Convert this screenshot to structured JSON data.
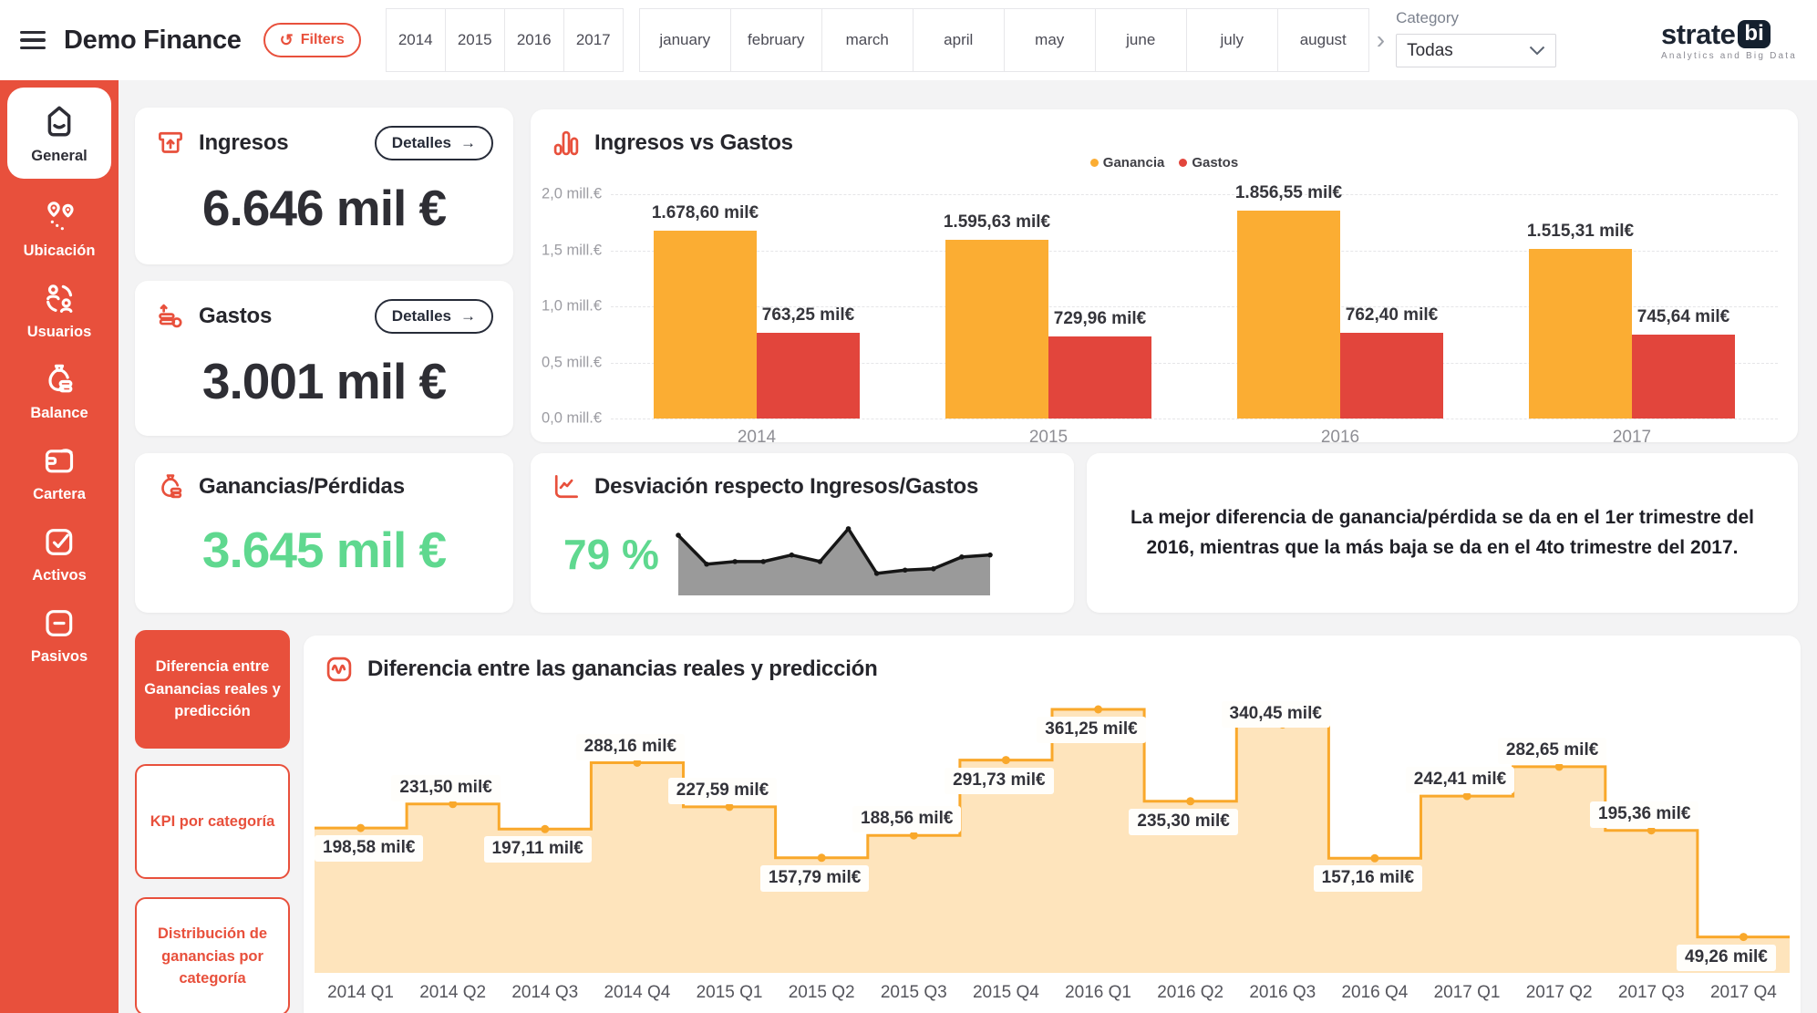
{
  "topbar": {
    "title": "Demo Finance",
    "filters_label": "Filters",
    "years": [
      "2014",
      "2015",
      "2016",
      "2017"
    ],
    "months": [
      "january",
      "february",
      "march",
      "april",
      "may",
      "june",
      "july",
      "august"
    ],
    "more_months_chevron": "›",
    "category": {
      "label": "Category",
      "value": "Todas"
    },
    "logo": {
      "brand": "strate",
      "brand_badge": "bi",
      "tagline": "Analytics and Big Data"
    }
  },
  "sidebar": {
    "items": [
      {
        "label": "General",
        "icon": "home-icon",
        "active": true
      },
      {
        "label": "Ubicación",
        "icon": "location-pins-icon",
        "active": false
      },
      {
        "label": "Usuarios",
        "icon": "users-sync-icon",
        "active": false
      },
      {
        "label": "Balance",
        "icon": "money-bag-icon",
        "active": false
      },
      {
        "label": "Cartera",
        "icon": "wallet-icon",
        "active": false
      },
      {
        "label": "Activos",
        "icon": "check-square-icon",
        "active": false
      },
      {
        "label": "Pasivos",
        "icon": "minus-square-icon",
        "active": false
      }
    ]
  },
  "kpis": {
    "ingresos": {
      "title": "Ingresos",
      "value": "6.646 mil €",
      "details_label": "Detalles",
      "icon": "cash-in-icon"
    },
    "gastos": {
      "title": "Gastos",
      "value": "3.001 mil €",
      "details_label": "Detalles",
      "icon": "coins-out-icon"
    },
    "ganancias": {
      "title": "Ganancias/Pérdidas",
      "value": "3.645 mil €",
      "icon": "money-bag-icon"
    },
    "desviacion": {
      "title": "Desviación respecto Ingresos/Gastos",
      "value": "79 %",
      "icon": "trend-axis-icon"
    }
  },
  "insight": {
    "text": "La mejor diferencia de ganancia/pérdida se da en el 1er trimestre del 2016, mientras que la más baja se da en el 4to trimestre del 2017."
  },
  "bottom_nav": {
    "buttons": [
      {
        "label": "Diferencia entre Ganancias reales y predicción",
        "active": true
      },
      {
        "label": "KPI por categoría",
        "active": false
      },
      {
        "label": "Distribución de ganancias por categoría",
        "active": false
      }
    ]
  },
  "colors": {
    "accent_red": "#E8503C",
    "bar_red": "#E2453C",
    "bar_orange": "#FBAD33",
    "step_line": "#F9A82B",
    "step_fill": "rgba(251,174,51,0.33)",
    "green": "#5FD88F",
    "spark_gray": "#9A9A9A",
    "spark_line": "#161616",
    "dark": "#262B38"
  },
  "chart_data": [
    {
      "id": "ingresos_vs_gastos",
      "type": "bar",
      "title": "Ingresos vs Gastos",
      "title_icon": "bar-chart-icon",
      "categories": [
        "2014",
        "2015",
        "2016",
        "2017"
      ],
      "series": [
        {
          "name": "Ganancia",
          "color": "#FBAD33",
          "values": [
            1678.6,
            1595.63,
            1856.55,
            1515.31
          ],
          "labels": [
            "1.678,60 mil€",
            "1.595,63 mil€",
            "1.856,55 mil€",
            "1.515,31 mil€"
          ]
        },
        {
          "name": "Gastos",
          "color": "#E2453C",
          "values": [
            763.25,
            729.96,
            762.4,
            745.64
          ],
          "labels": [
            "763,25 mil€",
            "729,96 mil€",
            "762,40 mil€",
            "745,64 mil€"
          ]
        }
      ],
      "ylabel_ticks": [
        "0,0 mill.€",
        "0,5 mill.€",
        "1,0 mill.€",
        "1,5 mill.€",
        "2,0 mill.€"
      ],
      "ylim": [
        0,
        2000
      ],
      "grid": "dashed-horizontal",
      "legend_position": "top-center"
    },
    {
      "id": "desviacion_sparkline",
      "type": "area",
      "values_pct": [
        86,
        42,
        46,
        46,
        56,
        46,
        96,
        28,
        33,
        35,
        53,
        56
      ],
      "ylim": [
        0,
        100
      ],
      "grid": "off",
      "legend_position": "none"
    },
    {
      "id": "diferencia_prediccion",
      "type": "step-area",
      "title": "Diferencia entre las ganancias reales y predicción",
      "title_icon": "wave-icon",
      "categories": [
        "2014 Q1",
        "2014 Q2",
        "2014 Q3",
        "2014 Q4",
        "2015 Q1",
        "2015 Q2",
        "2015 Q3",
        "2015 Q4",
        "2016 Q1",
        "2016 Q2",
        "2016 Q3",
        "2016 Q4",
        "2017 Q1",
        "2017 Q2",
        "2017 Q3",
        "2017 Q4"
      ],
      "values": [
        198.58,
        231.5,
        197.11,
        288.16,
        227.59,
        157.79,
        188.56,
        291.73,
        361.25,
        235.3,
        340.45,
        157.16,
        242.41,
        282.65,
        195.36,
        49.26
      ],
      "labels": [
        "198,58 mil€",
        "231,50 mil€",
        "197,11 mil€",
        "288,16 mil€",
        "227,59 mil€",
        "157,79 mil€",
        "188,56 mil€",
        "291,73 mil€",
        "361,25 mil€",
        "235,30 mil€",
        "340,45 mil€",
        "157,16 mil€",
        "242,41 mil€",
        "282,65 mil€",
        "195,36 mil€",
        "49,26 mil€"
      ],
      "label_side": [
        "below",
        "above",
        "below",
        "above",
        "above",
        "below",
        "above",
        "below",
        "below",
        "below",
        "above",
        "below",
        "above",
        "above",
        "above",
        "below"
      ],
      "ylim": [
        0,
        400
      ],
      "grid": "off",
      "legend_position": "none"
    }
  ]
}
